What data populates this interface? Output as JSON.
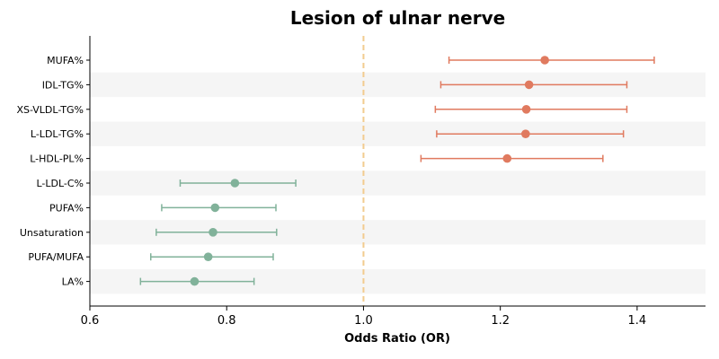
{
  "chart_data": {
    "type": "forest",
    "title": "Lesion of ulnar nerve",
    "xlabel": "Odds Ratio (OR)",
    "ylabel": "",
    "xlim": [
      0.6,
      1.5
    ],
    "x_ticks": [
      0.6,
      0.8,
      1.0,
      1.2,
      1.4
    ],
    "reference_line": 1.0,
    "grid": false,
    "row_banding": true,
    "colors": {
      "risk": "#e07a5f",
      "protective": "#81b29a",
      "reference_line": "#f2cc8f",
      "band": "#f5f5f5"
    },
    "rows": [
      {
        "label": "MUFA%",
        "or": 1.265,
        "lower": 1.125,
        "upper": 1.425,
        "direction": "risk"
      },
      {
        "label": "IDL-TG%",
        "or": 1.242,
        "lower": 1.113,
        "upper": 1.385,
        "direction": "risk"
      },
      {
        "label": "XS-VLDL-TG%",
        "or": 1.238,
        "lower": 1.105,
        "upper": 1.385,
        "direction": "risk"
      },
      {
        "label": "L-LDL-TG%",
        "or": 1.237,
        "lower": 1.107,
        "upper": 1.38,
        "direction": "risk"
      },
      {
        "label": "L-HDL-PL%",
        "or": 1.21,
        "lower": 1.084,
        "upper": 1.35,
        "direction": "risk"
      },
      {
        "label": "L-LDL-C%",
        "or": 0.812,
        "lower": 0.732,
        "upper": 0.901,
        "direction": "protective"
      },
      {
        "label": "PUFA%",
        "or": 0.783,
        "lower": 0.705,
        "upper": 0.872,
        "direction": "protective"
      },
      {
        "label": "Unsaturation",
        "or": 0.78,
        "lower": 0.697,
        "upper": 0.873,
        "direction": "protective"
      },
      {
        "label": "PUFA/MUFA",
        "or": 0.773,
        "lower": 0.689,
        "upper": 0.868,
        "direction": "protective"
      },
      {
        "label": "LA%",
        "or": 0.753,
        "lower": 0.674,
        "upper": 0.84,
        "direction": "protective"
      }
    ]
  }
}
